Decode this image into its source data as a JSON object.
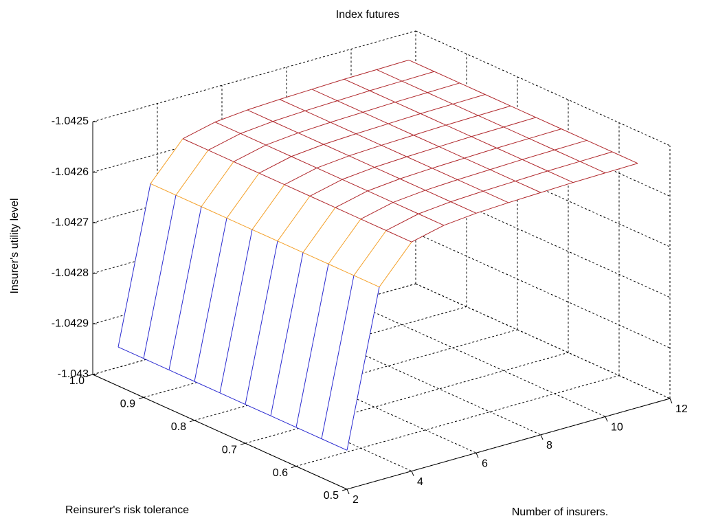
{
  "chart_data": {
    "type": "mesh",
    "title": "Index futures",
    "x_label": "Number of insurers.",
    "y_label": "Reinsurer's risk tolerance",
    "z_label": "Insurer's utility level",
    "x": [
      2,
      3,
      4,
      5,
      6,
      7,
      8,
      9,
      10,
      11
    ],
    "y": [
      0.5,
      0.55,
      0.6,
      0.65,
      0.7,
      0.75,
      0.8,
      0.85,
      0.9,
      0.95
    ],
    "z": [
      [
        -1.042923,
        -1.042618,
        -1.042547,
        -1.042532,
        -1.042526,
        -1.042523,
        -1.042521,
        -1.042519,
        -1.042518,
        -1.042517
      ],
      [
        -1.042923,
        -1.042618,
        -1.042547,
        -1.042532,
        -1.042526,
        -1.042523,
        -1.042521,
        -1.042519,
        -1.042518,
        -1.042517
      ],
      [
        -1.042923,
        -1.042618,
        -1.042547,
        -1.042532,
        -1.042526,
        -1.042523,
        -1.042521,
        -1.042519,
        -1.042518,
        -1.042517
      ],
      [
        -1.042923,
        -1.042618,
        -1.042547,
        -1.042532,
        -1.042526,
        -1.042523,
        -1.042521,
        -1.042519,
        -1.042518,
        -1.042517
      ],
      [
        -1.042923,
        -1.042618,
        -1.042547,
        -1.042532,
        -1.042526,
        -1.042523,
        -1.042521,
        -1.042519,
        -1.042518,
        -1.042517
      ],
      [
        -1.042923,
        -1.042618,
        -1.042547,
        -1.042532,
        -1.042526,
        -1.042523,
        -1.042521,
        -1.042519,
        -1.042518,
        -1.042517
      ],
      [
        -1.042923,
        -1.042618,
        -1.042547,
        -1.042532,
        -1.042526,
        -1.042523,
        -1.042521,
        -1.042519,
        -1.042518,
        -1.042517
      ],
      [
        -1.042923,
        -1.042618,
        -1.042547,
        -1.042532,
        -1.042526,
        -1.042523,
        -1.042521,
        -1.042519,
        -1.042518,
        -1.042517
      ],
      [
        -1.042923,
        -1.042618,
        -1.042547,
        -1.042532,
        -1.042526,
        -1.042523,
        -1.042521,
        -1.042519,
        -1.042518,
        -1.042517
      ],
      [
        -1.042923,
        -1.042618,
        -1.042547,
        -1.042532,
        -1.042526,
        -1.042523,
        -1.042521,
        -1.042519,
        -1.042518,
        -1.042517
      ]
    ],
    "xlim": [
      2,
      12
    ],
    "ylim": [
      0.5,
      1
    ],
    "zlim": [
      -1.043,
      -1.0425
    ],
    "xticks": [
      2,
      4,
      6,
      8,
      10,
      12
    ],
    "yticks": [
      0.5,
      0.6,
      0.7,
      0.8,
      0.9,
      {
        "value": 1,
        "label": "1.0"
      }
    ],
    "zticks": [
      -1.043,
      -1.0429,
      -1.0428,
      -1.0427,
      -1.0426,
      -1.0425
    ],
    "grid": true,
    "colormap": [
      "#2a2ad0",
      "#f4a028",
      "#b0282c"
    ]
  }
}
